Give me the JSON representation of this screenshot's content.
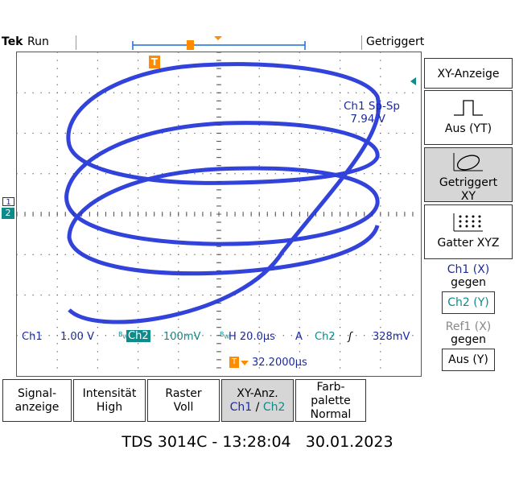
{
  "header": {
    "brand": "Tek",
    "run_state": "Run",
    "trigger_status": "Getriggert"
  },
  "display": {
    "measurement": {
      "label": "Ch1 Sp-Sp",
      "value": "7.94 V"
    },
    "status": {
      "ch1_label": "Ch1",
      "ch1_scale": "1.00 V",
      "ch2_label": "Ch2",
      "ch2_scale": "100mV",
      "horizontal": "H 20.0µs",
      "acq_mode": "A",
      "trig_source": "Ch2",
      "trig_level": "328mV",
      "trig_position": "32.2000µs"
    },
    "markers": {
      "trigger": "T",
      "ch1": "1",
      "ch2": "2"
    },
    "colors": {
      "trace": "#1b2fd6",
      "ch1": "#1c2a9c",
      "ch2": "#0e8b8b"
    }
  },
  "side_menu": {
    "title": "XY-Anzeige",
    "buttons": [
      {
        "label": "Aus (YT)"
      },
      {
        "label": "Getriggert XY",
        "line1": "Getriggert",
        "line2": "XY",
        "selected": true
      },
      {
        "label": "Gatter XYZ"
      }
    ],
    "ch1_vs": {
      "line1": "Ch1 (X)",
      "line2": "gegen",
      "value": "Ch2 (Y)"
    },
    "ref1_vs": {
      "line1": "Ref1 (X)",
      "line2": "gegen",
      "value": "Aus (Y)"
    }
  },
  "bottom_menu": [
    {
      "line1": "Signal-",
      "line2": "anzeige"
    },
    {
      "line1": "Intensität",
      "line2": "High"
    },
    {
      "line1": "Raster",
      "line2": "Voll"
    },
    {
      "line1": "XY-Anz.",
      "ch1": "Ch1",
      "sep": " / ",
      "ch2": "Ch2",
      "selected": true
    },
    {
      "line1": "Farb-",
      "line2": "palette",
      "line3": "Normal"
    }
  ],
  "footer": "TDS 3014C - 13:28:04   30.01.2023"
}
